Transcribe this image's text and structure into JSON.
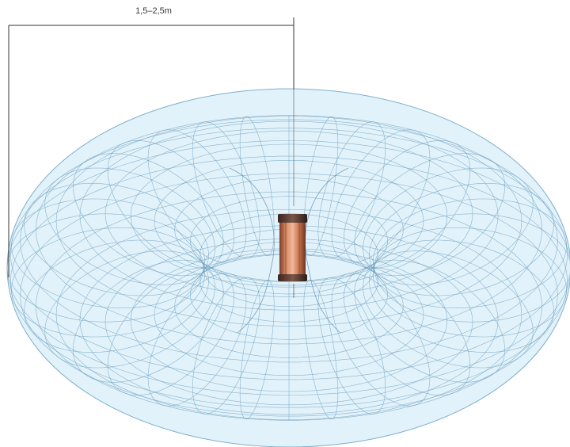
{
  "dimension": {
    "label": "1,5–2,5m"
  },
  "colors": {
    "torus_fill": "#d8eef8",
    "torus_line": "#6a9fbf",
    "coil_copper": "#c8734f",
    "coil_cap": "#5a3a30",
    "dimension_line": "#333333"
  },
  "icons": {
    "coil": "copper-coil-icon"
  }
}
